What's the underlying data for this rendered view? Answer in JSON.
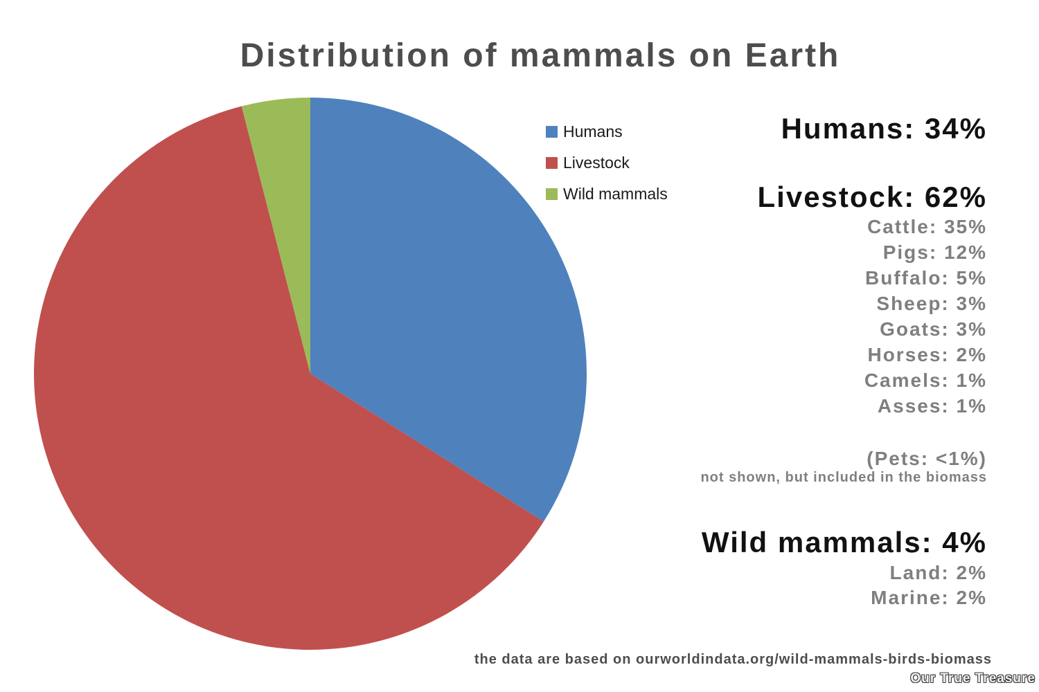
{
  "title": "Distribution of mammals on Earth",
  "chart_data": {
    "type": "pie",
    "title": "Distribution of mammals on Earth",
    "unit": "%",
    "direction": "clockwise",
    "start_angle_deg": 0,
    "legend_position": "right",
    "slices": [
      {
        "label": "Humans",
        "value": 34,
        "color": "#4F81BD"
      },
      {
        "label": "Livestock",
        "value": 62,
        "color": "#C0504D"
      },
      {
        "label": "Wild mammals",
        "value": 4,
        "color": "#9BBB59"
      }
    ],
    "breakdown": {
      "livestock": [
        {
          "label": "Cattle",
          "value": 35
        },
        {
          "label": "Pigs",
          "value": 12
        },
        {
          "label": "Buffalo",
          "value": 5
        },
        {
          "label": "Sheep",
          "value": 3
        },
        {
          "label": "Goats",
          "value": 3
        },
        {
          "label": "Horses",
          "value": 2
        },
        {
          "label": "Camels",
          "value": 1
        },
        {
          "label": "Asses",
          "value": 1
        }
      ],
      "wild_mammals": [
        {
          "label": "Land",
          "value": 2
        },
        {
          "label": "Marine",
          "value": 2
        }
      ],
      "pets": "<1"
    }
  },
  "annotations": {
    "humans_label": "Humans: 34%",
    "livestock_label": "Livestock: 62%",
    "livestock_items": [
      "Cattle: 35%",
      "Pigs: 12%",
      "Buffalo: 5%",
      "Sheep: 3%",
      "Goats: 3%",
      "Horses: 2%",
      "Camels: 1%",
      "Asses: 1%"
    ],
    "pets_label": "(Pets: <1%)",
    "pets_note": "not shown, but included in the biomass",
    "wild_label": "Wild mammals: 4%",
    "wild_items": [
      "Land: 2%",
      "Marine: 2%"
    ]
  },
  "footer": {
    "source_text": "the data are based on ourworldindata.org/wild-mammals-birds-biomass",
    "watermark": "Our True Treasure"
  },
  "colors": {
    "humans": "#4F81BD",
    "livestock": "#C0504D",
    "wild_mammals": "#9BBB59",
    "title_text": "#4D4D4D",
    "subitem_text": "#7F7F7F",
    "main_text": "#111111"
  }
}
